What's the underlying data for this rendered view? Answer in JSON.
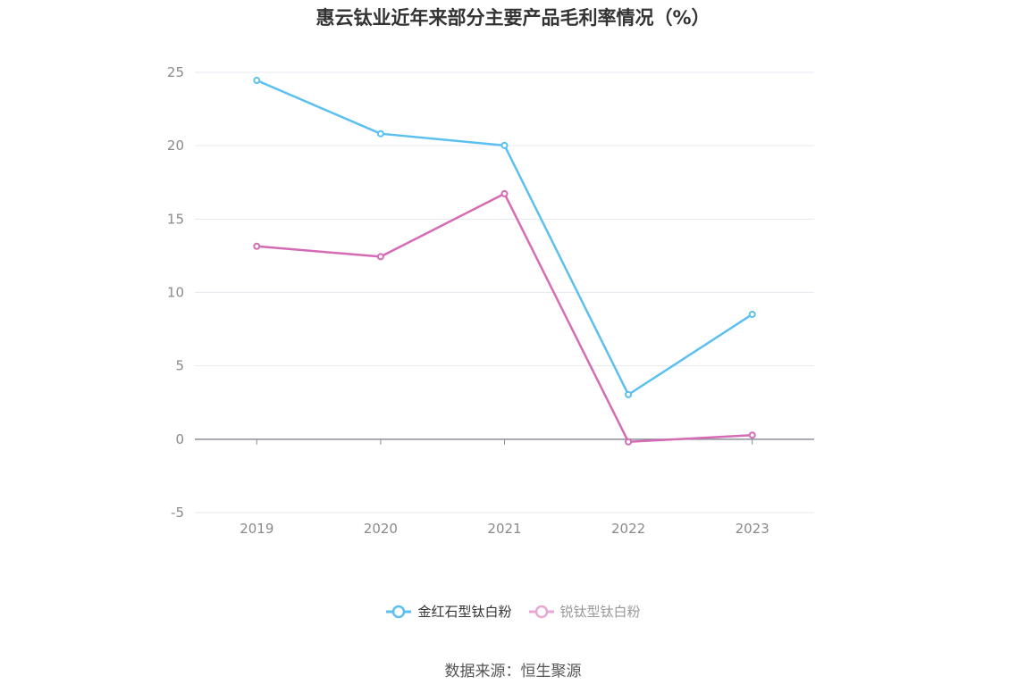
{
  "title": "惠云钛业近年来部分主要产品毛利率情况（%）",
  "source": "数据来源：恒生聚源",
  "colors": {
    "series_a": "#5bc0f0",
    "series_b": "#d56bb5",
    "series_b_legend": "#e7a9d4",
    "grid": "#e6e9ef",
    "zero_axis": "#8c8f99",
    "tick_text": "#8a8a8a"
  },
  "chart_data": {
    "type": "line",
    "title": "惠云钛业近年来部分主要产品毛利率情况（%）",
    "categories": [
      "2019",
      "2020",
      "2021",
      "2022",
      "2023"
    ],
    "series": [
      {
        "name": "金红石型钛白粉",
        "values": [
          24.45,
          20.82,
          20.02,
          3.04,
          8.51
        ]
      },
      {
        "name": "锐钛型钛白粉",
        "values": [
          13.15,
          12.44,
          16.73,
          -0.18,
          0.28
        ]
      }
    ],
    "yticks": [
      -5,
      0,
      5,
      10,
      15,
      20,
      25
    ],
    "ylim": [
      -5,
      25
    ],
    "grid": true,
    "legend": "bottom-center",
    "xlabel": "",
    "ylabel": ""
  }
}
